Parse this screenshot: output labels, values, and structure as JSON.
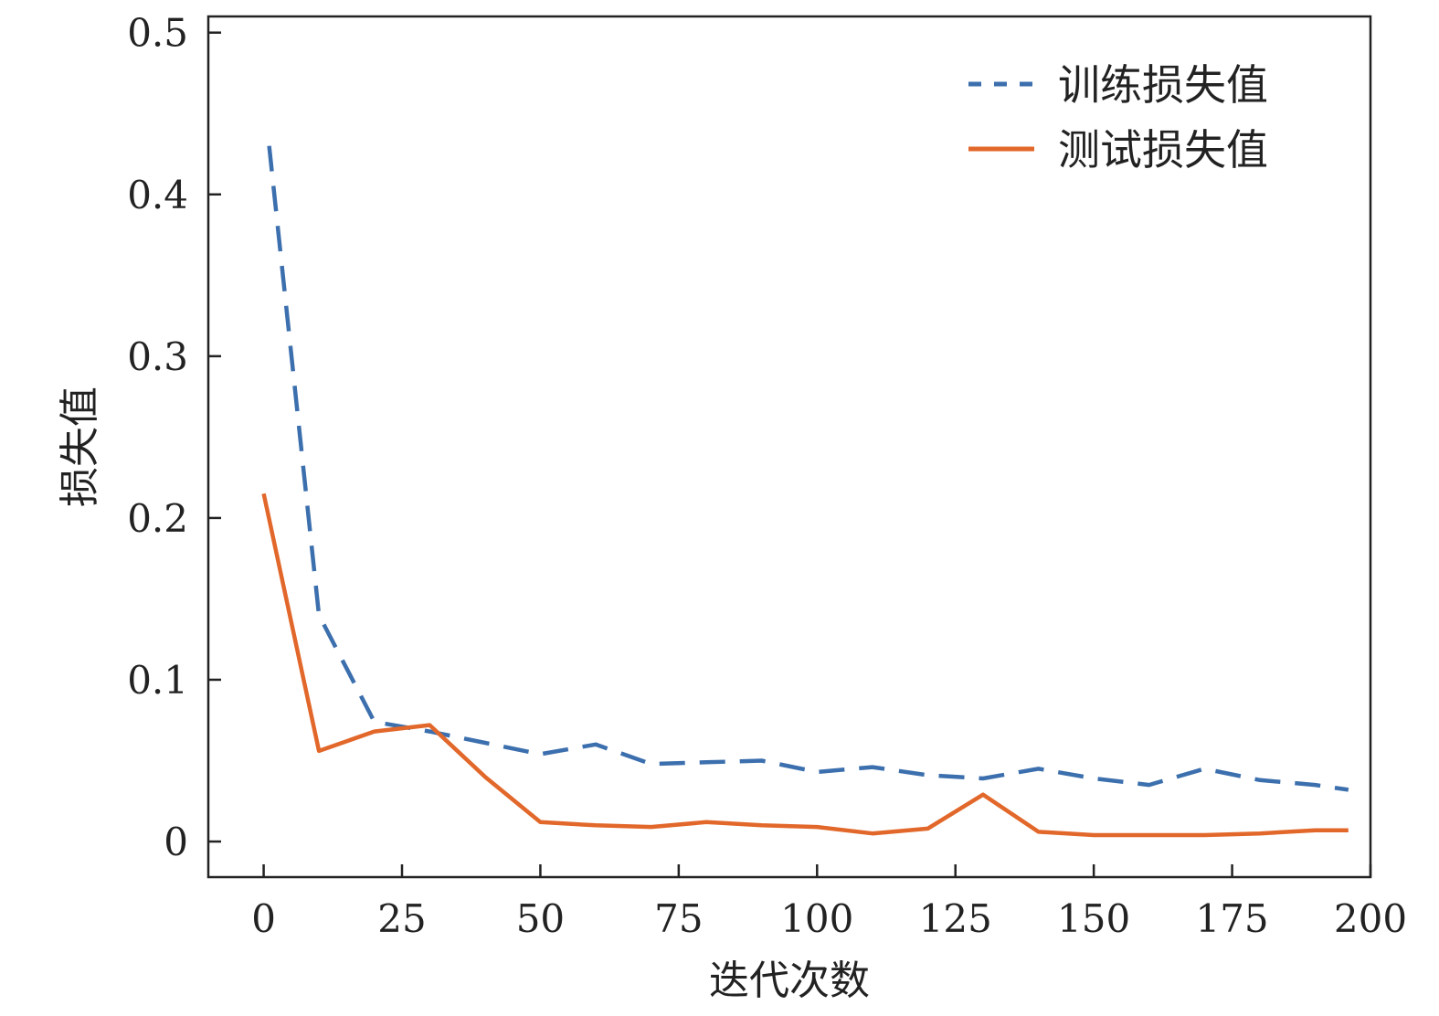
{
  "chart_data": {
    "type": "line",
    "xlabel": "迭代次数",
    "ylabel": "损失值",
    "xlim": [
      -10,
      200
    ],
    "ylim": [
      -0.022,
      0.51
    ],
    "xticks": [
      0,
      25,
      50,
      75,
      100,
      125,
      150,
      175,
      200
    ],
    "yticks": [
      0,
      0.1,
      0.2,
      0.3,
      0.4,
      0.5
    ],
    "xtick_labels": [
      "0",
      "25",
      "50",
      "75",
      "100",
      "125",
      "150",
      "175",
      "200"
    ],
    "ytick_labels": [
      "0",
      "0.1",
      "0.2",
      "0.3",
      "0.4",
      "0.5"
    ],
    "grid": false,
    "legend_position": "top-right",
    "series": [
      {
        "name": "训练损失值",
        "style": "dashed",
        "color": "#3c6fad",
        "x": [
          1,
          10,
          20,
          30,
          40,
          50,
          60,
          70,
          80,
          90,
          100,
          110,
          120,
          130,
          140,
          150,
          160,
          170,
          180,
          190,
          196
        ],
        "y": [
          0.43,
          0.14,
          0.074,
          0.068,
          0.061,
          0.054,
          0.06,
          0.048,
          0.049,
          0.05,
          0.043,
          0.046,
          0.041,
          0.039,
          0.045,
          0.039,
          0.035,
          0.045,
          0.038,
          0.035,
          0.032
        ]
      },
      {
        "name": "测试损失值",
        "style": "solid",
        "color": "#e2672a",
        "x": [
          0,
          10,
          20,
          30,
          40,
          50,
          60,
          70,
          80,
          90,
          100,
          110,
          120,
          130,
          140,
          150,
          160,
          170,
          180,
          190,
          196
        ],
        "y": [
          0.215,
          0.056,
          0.068,
          0.072,
          0.04,
          0.012,
          0.01,
          0.009,
          0.012,
          0.01,
          0.009,
          0.005,
          0.008,
          0.029,
          0.006,
          0.004,
          0.004,
          0.004,
          0.005,
          0.007,
          0.007
        ]
      }
    ]
  }
}
